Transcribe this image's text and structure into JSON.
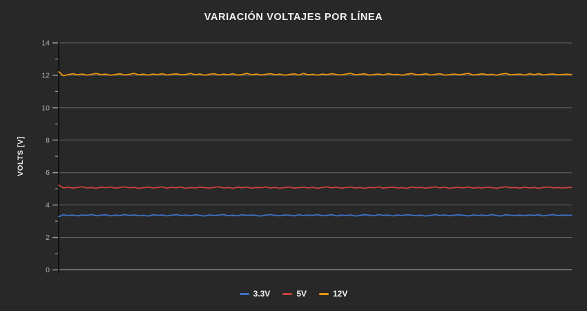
{
  "title": "VARIACIÓN VOLTAJES POR LÍNEA",
  "chart_data": {
    "type": "line",
    "title": "VARIACIÓN VOLTAJES POR LÍNEA",
    "xlabel": "",
    "ylabel": "VOLTS [V]",
    "ylim": [
      0,
      14
    ],
    "yticks_major": [
      0,
      2,
      4,
      6,
      8,
      10,
      12,
      14
    ],
    "yticks_minor": [
      1,
      3,
      5,
      7,
      9,
      11,
      13
    ],
    "grid": true,
    "x_tick_labels": "none",
    "legend_position": "bottom-center",
    "colors": {
      "background": "#282828",
      "grid": "#8a8a8a",
      "baseline": "#cccccc",
      "axis": "#111111",
      "tick": "#9a9a9a",
      "tick_label": "#b4b4b4",
      "title": "#f2f2f2",
      "legend_text": "#f5f5f5"
    },
    "series": [
      {
        "name": "3.3V",
        "color": "#3e72c8",
        "approx_mean": 3.37,
        "values": [
          3.28,
          3.4,
          3.35,
          3.38,
          3.33,
          3.39,
          3.36,
          3.41,
          3.34,
          3.37,
          3.4,
          3.33,
          3.38,
          3.35,
          3.41,
          3.36,
          3.39,
          3.34,
          3.37,
          3.32,
          3.4,
          3.36,
          3.39,
          3.33,
          3.37,
          3.41,
          3.35,
          3.38,
          3.34,
          3.4,
          3.36,
          3.32,
          3.39,
          3.35,
          3.38,
          3.41,
          3.34,
          3.37,
          3.33,
          3.4,
          3.36,
          3.39,
          3.35,
          3.32,
          3.38,
          3.41,
          3.36,
          3.34,
          3.39,
          3.37,
          3.33,
          3.4,
          3.35,
          3.38,
          3.36,
          3.41,
          3.34,
          3.37,
          3.4,
          3.33,
          3.38,
          3.35,
          3.39,
          3.32,
          3.36,
          3.4,
          3.37,
          3.34,
          3.41,
          3.36,
          3.38,
          3.33,
          3.39,
          3.35,
          3.4,
          3.37,
          3.34,
          3.38,
          3.32,
          3.36,
          3.41,
          3.35,
          3.39,
          3.34,
          3.37,
          3.4,
          3.36,
          3.33,
          3.39,
          3.35,
          3.38,
          3.34,
          3.41,
          3.36,
          3.32,
          3.4,
          3.37,
          3.35,
          3.38,
          3.34,
          3.39,
          3.36,
          3.4,
          3.33,
          3.37,
          3.41,
          3.35,
          3.38,
          3.36,
          3.37
        ]
      },
      {
        "name": "5V",
        "color": "#c8423a",
        "approx_mean": 5.08,
        "values": [
          5.22,
          5.06,
          5.1,
          5.04,
          5.09,
          5.12,
          5.05,
          5.08,
          5.03,
          5.1,
          5.07,
          5.11,
          5.04,
          5.08,
          5.12,
          5.06,
          5.09,
          5.03,
          5.07,
          5.1,
          5.05,
          5.08,
          5.12,
          5.04,
          5.09,
          5.06,
          5.11,
          5.03,
          5.08,
          5.05,
          5.1,
          5.07,
          5.04,
          5.09,
          5.12,
          5.05,
          5.08,
          5.03,
          5.1,
          5.06,
          5.11,
          5.04,
          5.08,
          5.07,
          5.12,
          5.05,
          5.09,
          5.03,
          5.08,
          5.11,
          5.04,
          5.07,
          5.1,
          5.05,
          5.09,
          5.03,
          5.08,
          5.12,
          5.06,
          5.1,
          5.04,
          5.07,
          5.11,
          5.05,
          5.08,
          5.03,
          5.09,
          5.06,
          5.12,
          5.04,
          5.08,
          5.1,
          5.05,
          5.07,
          5.03,
          5.11,
          5.06,
          5.09,
          5.04,
          5.08,
          5.12,
          5.05,
          5.1,
          5.03,
          5.07,
          5.09,
          5.06,
          5.11,
          5.04,
          5.08,
          5.05,
          5.1,
          5.07,
          5.03,
          5.09,
          5.12,
          5.06,
          5.08,
          5.04,
          5.1,
          5.05,
          5.08,
          5.03,
          5.09,
          5.11,
          5.06,
          5.08,
          5.05,
          5.07,
          5.09
        ]
      },
      {
        "name": "12V",
        "color": "#e8930c",
        "approx_mean": 12.05,
        "values": [
          12.22,
          11.97,
          12.04,
          12.1,
          12.03,
          12.08,
          12.01,
          12.06,
          12.11,
          12.04,
          12.07,
          12.0,
          12.05,
          12.09,
          12.02,
          12.06,
          12.12,
          12.03,
          12.07,
          12.01,
          12.08,
          12.04,
          12.1,
          12.02,
          12.06,
          12.09,
          12.03,
          12.05,
          12.11,
          12.04,
          12.08,
          12.0,
          12.06,
          12.1,
          12.02,
          12.07,
          12.04,
          12.09,
          12.01,
          12.05,
          12.12,
          12.03,
          12.08,
          12.02,
          12.06,
          12.1,
          12.04,
          12.07,
          12.0,
          12.05,
          12.09,
          12.02,
          12.11,
          12.03,
          12.06,
          12.01,
          12.08,
          12.04,
          12.1,
          12.05,
          12.02,
          12.07,
          12.12,
          12.03,
          12.06,
          12.09,
          12.01,
          12.05,
          12.08,
          12.02,
          12.1,
          12.04,
          12.06,
          12.0,
          12.07,
          12.11,
          12.03,
          12.05,
          12.09,
          12.02,
          12.06,
          12.1,
          12.01,
          12.04,
          12.08,
          12.03,
          12.07,
          12.12,
          12.02,
          12.05,
          12.09,
          12.04,
          12.06,
          12.0,
          12.08,
          12.11,
          12.03,
          12.05,
          12.07,
          12.01,
          12.09,
          12.04,
          12.1,
          12.02,
          12.06,
          12.08,
          12.03,
          12.05,
          12.07,
          12.04
        ]
      }
    ]
  }
}
